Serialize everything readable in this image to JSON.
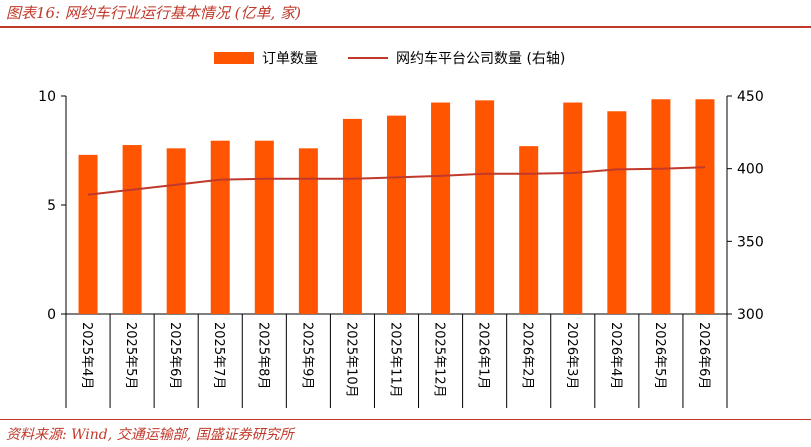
{
  "title": "图表16: 网约车行业运行基本情况 (亿单, 家)",
  "source": "资料来源: Wind, 交通运输部, 国盛证券研究所",
  "colors": {
    "bar": "#ff5500",
    "line": "#c0392b",
    "accent": "#c0392b"
  },
  "chart_data": {
    "type": "bar",
    "categories": [
      "2025年4月",
      "2025年5月",
      "2025年6月",
      "2025年7月",
      "2025年8月",
      "2025年9月",
      "2025年10月",
      "2025年11月",
      "2025年12月",
      "2026年1月",
      "2026年2月",
      "2026年3月",
      "2026年4月",
      "2026年5月",
      "2026年6月"
    ],
    "series": [
      {
        "name": "订单数量",
        "type": "bar",
        "axis": "left",
        "values": [
          7.3,
          7.75,
          7.6,
          7.95,
          7.95,
          7.6,
          8.95,
          9.1,
          9.7,
          9.8,
          7.7,
          9.7,
          9.3,
          9.85,
          9.85
        ]
      },
      {
        "name": "网约车平台公司数量 (右轴)",
        "type": "line",
        "axis": "right",
        "values": [
          382,
          385.5,
          389,
          392.5,
          393,
          393,
          393,
          394,
          395,
          396.5,
          396.5,
          397,
          399.5,
          400,
          401
        ]
      }
    ],
    "y_left": {
      "ylim": [
        0,
        10
      ],
      "ticks": [
        "0",
        "5",
        "10"
      ]
    },
    "y_right": {
      "ylim": [
        300,
        450
      ],
      "ticks": [
        "300",
        "350",
        "400",
        "450"
      ]
    },
    "legend_position": "top-center",
    "grid": false
  }
}
